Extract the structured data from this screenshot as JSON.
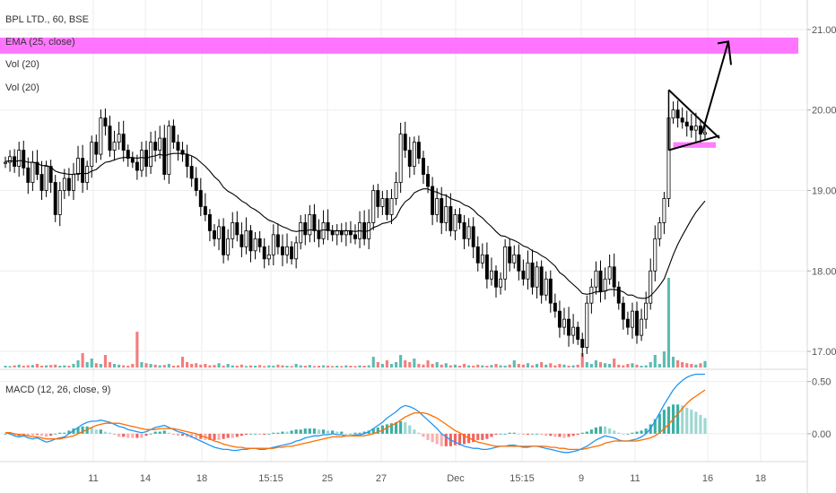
{
  "legend": {
    "symbol": "BPL LTD., 60, BSE",
    "ema": "EMA (25, close)",
    "vol1": "Vol (20)",
    "vol2": "Vol (20)",
    "macd": "MACD (12, 26, close, 9)"
  },
  "colors": {
    "up": "#26a69a",
    "down": "#ef5350",
    "candle": "#000000",
    "ema": "#000000",
    "zone": "#ff66ff",
    "macd": "#2196f3",
    "signal": "#ff6d00",
    "hist_up": "#26a69a",
    "hist_down": "#ef5350",
    "grid": "#eeeeee"
  },
  "chart_data": [
    {
      "type": "candlestick",
      "title": "BPL LTD., 60, BSE",
      "ylim": [
        16.8,
        21.3
      ],
      "y_ticks": [
        "17.00",
        "18.00",
        "19.00",
        "20.00",
        "21.00"
      ],
      "x_ticks": [
        "11",
        "14",
        "18",
        "15:15",
        "25",
        "27",
        "Dec",
        "15:15",
        "9",
        "11",
        "16",
        "18"
      ],
      "resistance_zone": [
        20.7,
        20.9
      ],
      "support_zone": [
        19.53,
        19.6
      ],
      "triangle": {
        "upper_start": 20.25,
        "upper_end": 19.65,
        "lower_start": 19.5,
        "lower_end": 19.68
      },
      "arrow": {
        "from": 19.72,
        "to": 20.85
      },
      "closes": [
        19.35,
        19.42,
        19.3,
        19.5,
        19.28,
        19.1,
        19.35,
        19.2,
        19.0,
        19.3,
        19.1,
        18.7,
        19.0,
        19.15,
        19.0,
        19.2,
        19.4,
        19.1,
        19.3,
        19.6,
        19.45,
        19.9,
        19.8,
        19.5,
        19.6,
        19.7,
        19.5,
        19.4,
        19.35,
        19.25,
        19.5,
        19.3,
        19.6,
        19.5,
        19.65,
        19.2,
        19.8,
        19.6,
        19.5,
        19.45,
        19.3,
        19.15,
        19.0,
        18.8,
        18.7,
        18.5,
        18.4,
        18.55,
        18.2,
        18.4,
        18.6,
        18.45,
        18.3,
        18.5,
        18.25,
        18.4,
        18.3,
        18.15,
        18.2,
        18.45,
        18.3,
        18.2,
        18.3,
        18.15,
        18.35,
        18.6,
        18.45,
        18.7,
        18.5,
        18.4,
        18.6,
        18.5,
        18.45,
        18.5,
        18.45,
        18.5,
        18.45,
        18.4,
        18.6,
        18.4,
        18.6,
        19.0,
        18.8,
        18.9,
        18.7,
        18.9,
        19.1,
        19.7,
        19.5,
        19.3,
        19.6,
        19.4,
        19.2,
        19.05,
        18.7,
        18.9,
        18.6,
        18.8,
        18.5,
        18.7,
        18.6,
        18.4,
        18.55,
        18.3,
        18.1,
        18.2,
        17.9,
        18.0,
        17.8,
        17.9,
        18.3,
        18.1,
        18.2,
        18.0,
        17.9,
        18.1,
        17.8,
        18.05,
        17.7,
        17.9,
        17.6,
        17.5,
        17.3,
        17.4,
        17.2,
        17.3,
        17.15,
        17.05,
        17.6,
        17.8,
        18.0,
        17.75,
        17.9,
        18.05,
        17.8,
        17.6,
        17.4,
        17.3,
        17.5,
        17.2,
        17.4,
        17.6,
        18.0,
        18.4,
        18.6,
        18.9,
        19.9,
        20.0,
        19.9,
        19.85,
        19.8,
        19.75,
        19.8,
        19.7,
        19.72
      ],
      "ema": [
        19.36,
        19.37,
        19.36,
        19.37,
        19.37,
        19.35,
        19.35,
        19.34,
        19.31,
        19.31,
        19.29,
        19.24,
        19.22,
        19.21,
        19.2,
        19.2,
        19.21,
        19.21,
        19.21,
        19.24,
        19.26,
        19.31,
        19.35,
        19.36,
        19.38,
        19.4,
        19.41,
        19.41,
        19.41,
        19.4,
        19.41,
        19.4,
        19.42,
        19.43,
        19.45,
        19.43,
        19.45,
        19.46,
        19.46,
        19.46,
        19.45,
        19.43,
        19.4,
        19.35,
        19.3,
        19.24,
        19.17,
        19.12,
        19.04,
        18.99,
        18.96,
        18.92,
        18.87,
        18.84,
        18.79,
        18.76,
        18.72,
        18.67,
        18.63,
        18.61,
        18.58,
        18.55,
        18.53,
        18.5,
        18.49,
        18.5,
        18.5,
        18.51,
        18.51,
        18.5,
        18.51,
        18.51,
        18.5,
        18.5,
        18.5,
        18.5,
        18.5,
        18.49,
        18.5,
        18.49,
        18.5,
        18.54,
        18.56,
        18.59,
        18.6,
        18.62,
        18.67,
        18.78,
        18.86,
        18.9,
        18.97,
        19.0,
        19.02,
        19.02,
        18.99,
        18.98,
        18.95,
        18.94,
        18.9,
        18.88,
        18.86,
        18.82,
        18.8,
        18.76,
        18.7,
        18.66,
        18.6,
        18.55,
        18.49,
        18.44,
        18.43,
        18.4,
        18.38,
        18.35,
        18.31,
        18.29,
        18.25,
        18.23,
        18.19,
        18.16,
        18.11,
        18.06,
        17.98,
        17.94,
        17.88,
        17.83,
        17.78,
        17.72,
        17.71,
        17.72,
        17.74,
        17.74,
        17.75,
        17.77,
        17.77,
        17.76,
        17.74,
        17.7,
        17.7,
        17.67,
        17.66,
        17.66,
        17.69,
        17.75,
        17.82,
        17.9,
        18.05,
        18.2,
        18.33,
        18.44,
        18.54,
        18.64,
        18.73,
        18.8,
        18.87
      ],
      "volume": [
        0.05,
        0.04,
        0.06,
        0.08,
        0.05,
        0.06,
        0.07,
        0.1,
        0.05,
        0.06,
        0.07,
        0.08,
        0.05,
        0.06,
        0.05,
        0.1,
        0.2,
        0.4,
        0.15,
        0.25,
        0.12,
        0.1,
        0.35,
        0.15,
        0.1,
        0.08,
        0.06,
        0.05,
        0.1,
        1.0,
        0.15,
        0.12,
        0.1,
        0.08,
        0.06,
        0.07,
        0.1,
        0.05,
        0.06,
        0.3,
        0.15,
        0.1,
        0.12,
        0.08,
        0.1,
        0.06,
        0.07,
        0.12,
        0.05,
        0.1,
        0.06,
        0.05,
        0.08,
        0.04,
        0.06,
        0.05,
        0.07,
        0.04,
        0.06,
        0.05,
        0.08,
        0.06,
        0.05,
        0.04,
        0.1,
        0.06,
        0.05,
        0.07,
        0.04,
        0.05,
        0.06,
        0.05,
        0.04,
        0.05,
        0.04,
        0.06,
        0.05,
        0.04,
        0.06,
        0.05,
        0.06,
        0.3,
        0.15,
        0.1,
        0.2,
        0.1,
        0.15,
        0.35,
        0.2,
        0.15,
        0.25,
        0.1,
        0.08,
        0.2,
        0.1,
        0.15,
        0.08,
        0.12,
        0.06,
        0.08,
        0.05,
        0.1,
        0.06,
        0.05,
        0.08,
        0.06,
        0.05,
        0.07,
        0.1,
        0.06,
        0.05,
        0.08,
        0.2,
        0.1,
        0.08,
        0.12,
        0.06,
        0.1,
        0.15,
        0.08,
        0.12,
        0.06,
        0.1,
        0.08,
        0.05,
        0.06,
        0.08,
        0.4,
        0.15,
        0.1,
        0.2,
        0.15,
        0.12,
        0.1,
        0.25,
        0.08,
        0.06,
        0.1,
        0.12,
        0.08,
        0.05,
        0.06,
        0.15,
        0.35,
        0.1,
        0.45,
        2.5,
        0.3,
        0.2,
        0.15,
        0.12,
        0.1,
        0.08,
        0.12,
        0.18
      ]
    },
    {
      "type": "macd",
      "title": "MACD (12, 26, close, 9)",
      "ylim": [
        -0.25,
        0.6
      ],
      "y_ticks": [
        "0.50",
        "0.00"
      ],
      "macd": [
        0.01,
        0.0,
        -0.02,
        -0.03,
        -0.02,
        -0.04,
        -0.05,
        -0.04,
        -0.06,
        -0.08,
        -0.07,
        -0.05,
        -0.04,
        -0.03,
        0.0,
        0.03,
        0.06,
        0.09,
        0.11,
        0.12,
        0.12,
        0.13,
        0.12,
        0.11,
        0.09,
        0.07,
        0.06,
        0.04,
        0.03,
        0.02,
        0.01,
        0.02,
        0.04,
        0.06,
        0.07,
        0.08,
        0.06,
        0.04,
        0.02,
        0.01,
        -0.01,
        -0.03,
        -0.05,
        -0.07,
        -0.09,
        -0.11,
        -0.13,
        -0.14,
        -0.15,
        -0.15,
        -0.16,
        -0.16,
        -0.15,
        -0.15,
        -0.14,
        -0.14,
        -0.15,
        -0.15,
        -0.14,
        -0.13,
        -0.12,
        -0.11,
        -0.1,
        -0.09,
        -0.07,
        -0.06,
        -0.04,
        -0.03,
        -0.02,
        -0.02,
        -0.01,
        -0.01,
        0.0,
        -0.01,
        -0.01,
        -0.02,
        -0.02,
        -0.01,
        -0.01,
        0.0,
        0.02,
        0.05,
        0.08,
        0.11,
        0.15,
        0.18,
        0.21,
        0.25,
        0.27,
        0.26,
        0.24,
        0.21,
        0.17,
        0.13,
        0.09,
        0.05,
        0.0,
        -0.03,
        -0.06,
        -0.08,
        -0.1,
        -0.12,
        -0.13,
        -0.14,
        -0.14,
        -0.15,
        -0.15,
        -0.14,
        -0.13,
        -0.12,
        -0.12,
        -0.11,
        -0.11,
        -0.12,
        -0.13,
        -0.13,
        -0.12,
        -0.12,
        -0.13,
        -0.14,
        -0.15,
        -0.16,
        -0.17,
        -0.18,
        -0.18,
        -0.17,
        -0.16,
        -0.14,
        -0.12,
        -0.09,
        -0.06,
        -0.04,
        -0.02,
        -0.03,
        -0.04,
        -0.06,
        -0.07,
        -0.07,
        -0.06,
        -0.05,
        -0.03,
        0.0,
        0.05,
        0.12,
        0.2,
        0.28,
        0.35,
        0.42,
        0.47,
        0.51,
        0.54,
        0.56,
        0.57,
        0.57,
        0.57
      ],
      "signal": [
        0.01,
        0.01,
        0.0,
        -0.01,
        -0.01,
        -0.02,
        -0.03,
        -0.03,
        -0.04,
        -0.05,
        -0.05,
        -0.05,
        -0.05,
        -0.04,
        -0.03,
        -0.02,
        0.0,
        0.02,
        0.04,
        0.06,
        0.08,
        0.09,
        0.1,
        0.1,
        0.1,
        0.1,
        0.09,
        0.08,
        0.07,
        0.06,
        0.05,
        0.04,
        0.04,
        0.04,
        0.05,
        0.05,
        0.05,
        0.05,
        0.04,
        0.03,
        0.02,
        0.01,
        0.0,
        -0.02,
        -0.03,
        -0.05,
        -0.07,
        -0.08,
        -0.1,
        -0.11,
        -0.12,
        -0.13,
        -0.13,
        -0.14,
        -0.14,
        -0.14,
        -0.14,
        -0.14,
        -0.14,
        -0.14,
        -0.13,
        -0.13,
        -0.12,
        -0.12,
        -0.11,
        -0.1,
        -0.09,
        -0.08,
        -0.07,
        -0.06,
        -0.05,
        -0.04,
        -0.03,
        -0.03,
        -0.03,
        -0.02,
        -0.02,
        -0.02,
        -0.02,
        -0.02,
        -0.01,
        0.0,
        0.02,
        0.03,
        0.06,
        0.08,
        0.1,
        0.13,
        0.16,
        0.18,
        0.2,
        0.2,
        0.2,
        0.19,
        0.17,
        0.15,
        0.12,
        0.09,
        0.06,
        0.03,
        0.01,
        -0.02,
        -0.04,
        -0.06,
        -0.08,
        -0.09,
        -0.1,
        -0.11,
        -0.12,
        -0.12,
        -0.12,
        -0.12,
        -0.12,
        -0.12,
        -0.12,
        -0.12,
        -0.12,
        -0.12,
        -0.12,
        -0.12,
        -0.13,
        -0.13,
        -0.14,
        -0.14,
        -0.15,
        -0.15,
        -0.15,
        -0.15,
        -0.14,
        -0.13,
        -0.12,
        -0.11,
        -0.09,
        -0.08,
        -0.07,
        -0.07,
        -0.07,
        -0.07,
        -0.07,
        -0.07,
        -0.06,
        -0.05,
        -0.04,
        -0.02,
        0.01,
        0.05,
        0.09,
        0.14,
        0.19,
        0.24,
        0.29,
        0.33,
        0.36,
        0.39,
        0.42
      ]
    }
  ]
}
